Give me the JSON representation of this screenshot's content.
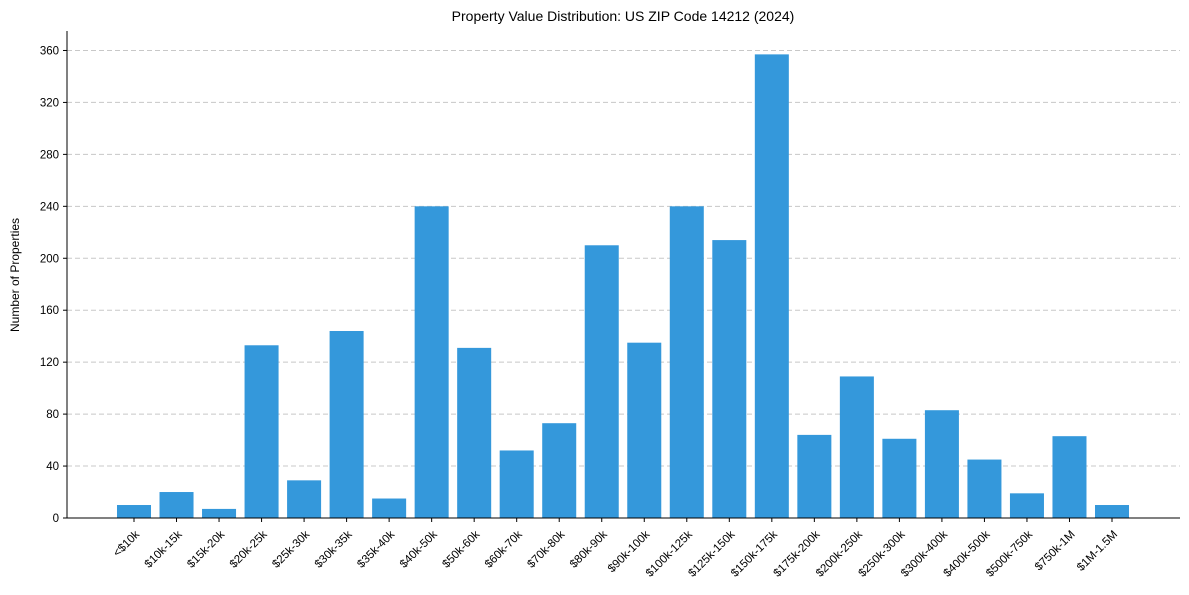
{
  "chart_data": {
    "type": "bar",
    "title": "Property Value Distribution: US ZIP Code 14212 (2024)",
    "xlabel": "",
    "ylabel": "Number of Properties",
    "ylim": [
      0,
      375
    ],
    "yticks": [
      0,
      40,
      80,
      120,
      160,
      200,
      240,
      280,
      320,
      360
    ],
    "grid": "y-dashed",
    "bar_color": "#3498db",
    "categories": [
      "<$10k",
      "$10k-15k",
      "$15k-20k",
      "$20k-25k",
      "$25k-30k",
      "$30k-35k",
      "$35k-40k",
      "$40k-50k",
      "$50k-60k",
      "$60k-70k",
      "$70k-80k",
      "$80k-90k",
      "$90k-100k",
      "$100k-125k",
      "$125k-150k",
      "$150k-175k",
      "$175k-200k",
      "$200k-250k",
      "$250k-300k",
      "$300k-400k",
      "$400k-500k",
      "$500k-750k",
      "$750k-1M",
      "$1M-1.5M"
    ],
    "values": [
      10,
      20,
      7,
      133,
      29,
      144,
      15,
      240,
      131,
      52,
      73,
      210,
      135,
      240,
      214,
      357,
      64,
      109,
      61,
      83,
      45,
      19,
      63,
      10
    ]
  }
}
